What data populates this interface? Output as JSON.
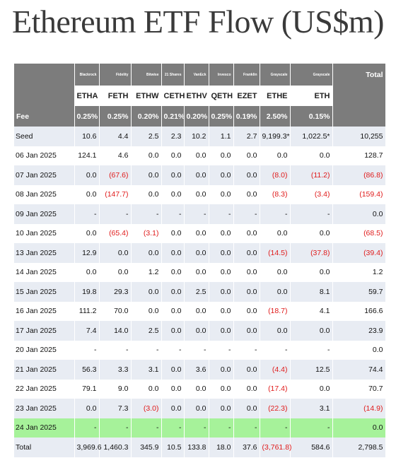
{
  "header": {
    "title": "Ethereum ETF Flow (US$m)"
  },
  "table": {
    "issuers": [
      "Blackrock",
      "Fidelity",
      "Bitwise",
      "21 Shares",
      "VanEck",
      "Invesco",
      "Franklin",
      "Grayscale",
      "Grayscale"
    ],
    "total_header": "Total",
    "tickers": [
      "ETHA",
      "FETH",
      "ETHW",
      "CETH",
      "ETHV",
      "QETH",
      "EZET",
      "ETHE",
      "ETH"
    ],
    "fee_label": "Fee",
    "fees": [
      "0.25%",
      "0.25%",
      "0.20%",
      "0.21%",
      "0.20%",
      "0.25%",
      "0.19%",
      "2.50%",
      "0.15%"
    ],
    "rows": [
      [
        "Seed",
        "10.6",
        "4.4",
        "2.5",
        "2.3",
        "10.2",
        "1.1",
        "2.7",
        "9,199.3*",
        "1,022.5*",
        "10,255"
      ],
      [
        "06 Jan 2025",
        "124.1",
        "4.6",
        "0.0",
        "0.0",
        "0.0",
        "0.0",
        "0.0",
        "0.0",
        "0.0",
        "128.7"
      ],
      [
        "07 Jan 2025",
        "0.0",
        "(67.6)",
        "0.0",
        "0.0",
        "0.0",
        "0.0",
        "0.0",
        "(8.0)",
        "(11.2)",
        "(86.8)"
      ],
      [
        "08 Jan 2025",
        "0.0",
        "(147.7)",
        "0.0",
        "0.0",
        "0.0",
        "0.0",
        "0.0",
        "(8.3)",
        "(3.4)",
        "(159.4)"
      ],
      [
        "09 Jan 2025",
        "-",
        "-",
        "-",
        "-",
        "-",
        "-",
        "-",
        "-",
        "-",
        "0.0"
      ],
      [
        "10 Jan 2025",
        "0.0",
        "(65.4)",
        "(3.1)",
        "0.0",
        "0.0",
        "0.0",
        "0.0",
        "0.0",
        "0.0",
        "(68.5)"
      ],
      [
        "13 Jan 2025",
        "12.9",
        "0.0",
        "0.0",
        "0.0",
        "0.0",
        "0.0",
        "0.0",
        "(14.5)",
        "(37.8)",
        "(39.4)"
      ],
      [
        "14 Jan 2025",
        "0.0",
        "0.0",
        "1.2",
        "0.0",
        "0.0",
        "0.0",
        "0.0",
        "0.0",
        "0.0",
        "1.2"
      ],
      [
        "15 Jan 2025",
        "19.8",
        "29.3",
        "0.0",
        "0.0",
        "2.5",
        "0.0",
        "0.0",
        "0.0",
        "8.1",
        "59.7"
      ],
      [
        "16 Jan 2025",
        "111.2",
        "70.0",
        "0.0",
        "0.0",
        "0.0",
        "0.0",
        "0.0",
        "(18.7)",
        "4.1",
        "166.6"
      ],
      [
        "17 Jan 2025",
        "7.4",
        "14.0",
        "2.5",
        "0.0",
        "0.0",
        "0.0",
        "0.0",
        "0.0",
        "0.0",
        "23.9"
      ],
      [
        "20 Jan 2025",
        "-",
        "-",
        "-",
        "-",
        "-",
        "-",
        "-",
        "-",
        "-",
        "0.0"
      ],
      [
        "21 Jan 2025",
        "56.3",
        "3.3",
        "3.1",
        "0.0",
        "3.6",
        "0.0",
        "0.0",
        "(4.4)",
        "12.5",
        "74.4"
      ],
      [
        "22 Jan 2025",
        "79.1",
        "9.0",
        "0.0",
        "0.0",
        "0.0",
        "0.0",
        "0.0",
        "(17.4)",
        "0.0",
        "70.7"
      ],
      [
        "23 Jan 2025",
        "0.0",
        "7.3",
        "(3.0)",
        "0.0",
        "0.0",
        "0.0",
        "0.0",
        "(22.3)",
        "3.1",
        "(14.9)"
      ],
      [
        "24 Jan 2025",
        "-",
        "-",
        "-",
        "-",
        "-",
        "-",
        "-",
        "-",
        "-",
        "0.0"
      ],
      [
        "Total",
        "3,969.6",
        "1,460.3",
        "345.9",
        "10.5",
        "133.8",
        "18.0",
        "37.6",
        "(3,761.8)",
        "584.6",
        "2,798.5"
      ]
    ]
  }
}
